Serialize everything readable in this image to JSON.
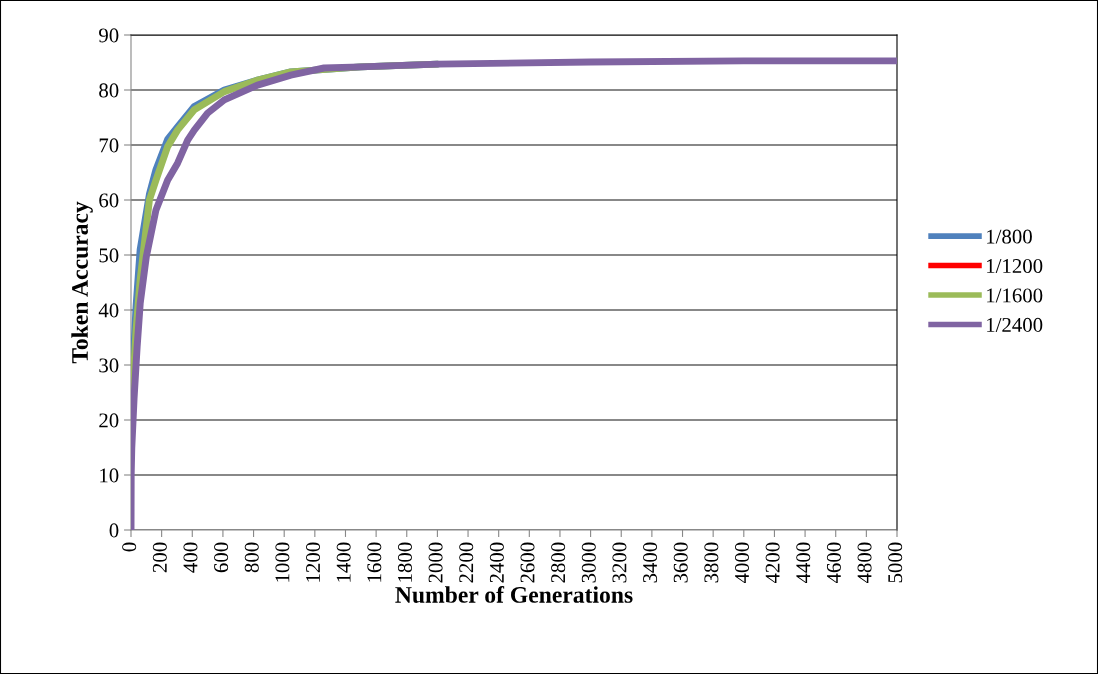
{
  "chart_data": {
    "type": "line",
    "xlabel": "Number of Generations",
    "ylabel": "Token Accuracy",
    "xlim": [
      0,
      5000
    ],
    "ylim": [
      0,
      90
    ],
    "xticks": [
      0,
      200,
      400,
      600,
      800,
      1000,
      1200,
      1400,
      1600,
      1800,
      2000,
      2200,
      2400,
      2600,
      2800,
      3000,
      3200,
      3400,
      3600,
      3800,
      4000,
      4200,
      4400,
      4600,
      4800,
      5000
    ],
    "yticks": [
      0,
      10,
      20,
      30,
      40,
      50,
      60,
      70,
      80,
      90
    ],
    "grid": "y",
    "legend": "right",
    "marker": "none",
    "line_style": "solid",
    "series": [
      {
        "name": "1/800",
        "color": "#4f81bd",
        "x": [
          0,
          33,
          60,
          120,
          163,
          239,
          304,
          413,
          609,
          826,
          1043,
          1500,
          2000
        ],
        "values": [
          22,
          40.6,
          51,
          61,
          65.5,
          71,
          73.3,
          77,
          80,
          81.8,
          83.3,
          84.2,
          84.7
        ]
      },
      {
        "name": "1/1200",
        "color": "#ff0000"
      },
      {
        "name": "1/1600",
        "color": "#9bbb59",
        "x": [
          0,
          33,
          60,
          120,
          163,
          239,
          304,
          413,
          609,
          826,
          1043,
          1500,
          2000
        ],
        "values": [
          20,
          36.4,
          45.5,
          60,
          63.6,
          69.7,
          72.7,
          76.4,
          79.7,
          81.8,
          83.3,
          84.2,
          84.7
        ]
      },
      {
        "name": "1/2400",
        "color": "#8064a2",
        "x": [
          0,
          1,
          5,
          20,
          40,
          60,
          100,
          163,
          239,
          304,
          370,
          413,
          500,
          609,
          826,
          1043,
          1260,
          1500,
          2000,
          3000,
          4000,
          5000
        ],
        "values": [
          0,
          10,
          15,
          24,
          33.3,
          41.2,
          49.7,
          58.2,
          63.6,
          66.7,
          70.9,
          72.7,
          75.8,
          78.2,
          80.9,
          82.7,
          84,
          84.2,
          84.7,
          85.1,
          85.3,
          85.3
        ]
      }
    ]
  }
}
